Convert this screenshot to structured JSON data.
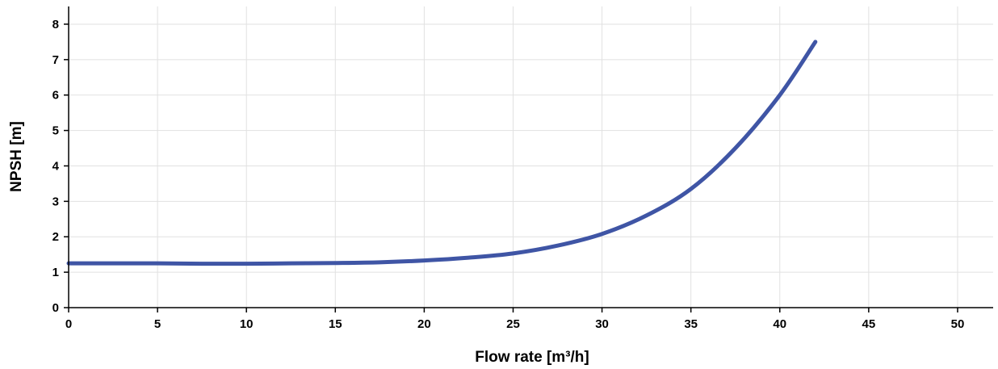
{
  "chart_data": {
    "type": "line",
    "title": "",
    "xlabel": "Flow rate [m³/h]",
    "ylabel": "NPSH [m]",
    "xlim": [
      0,
      52
    ],
    "ylim": [
      0,
      8.5
    ],
    "x_ticks": [
      0,
      5,
      10,
      15,
      20,
      25,
      30,
      35,
      40,
      45,
      50
    ],
    "y_ticks": [
      0,
      1,
      2,
      3,
      4,
      5,
      6,
      7,
      8
    ],
    "grid": true,
    "legend": "none",
    "series": [
      {
        "color": "#3f55a5",
        "x": [
          0,
          2.5,
          5,
          7.5,
          10,
          12.5,
          15,
          17.5,
          20,
          22.5,
          25,
          27.5,
          30,
          32.5,
          35,
          37.5,
          40,
          42
        ],
        "y": [
          1.25,
          1.25,
          1.25,
          1.24,
          1.24,
          1.25,
          1.26,
          1.28,
          1.33,
          1.41,
          1.53,
          1.75,
          2.08,
          2.6,
          3.35,
          4.5,
          6.0,
          7.5
        ]
      }
    ]
  }
}
